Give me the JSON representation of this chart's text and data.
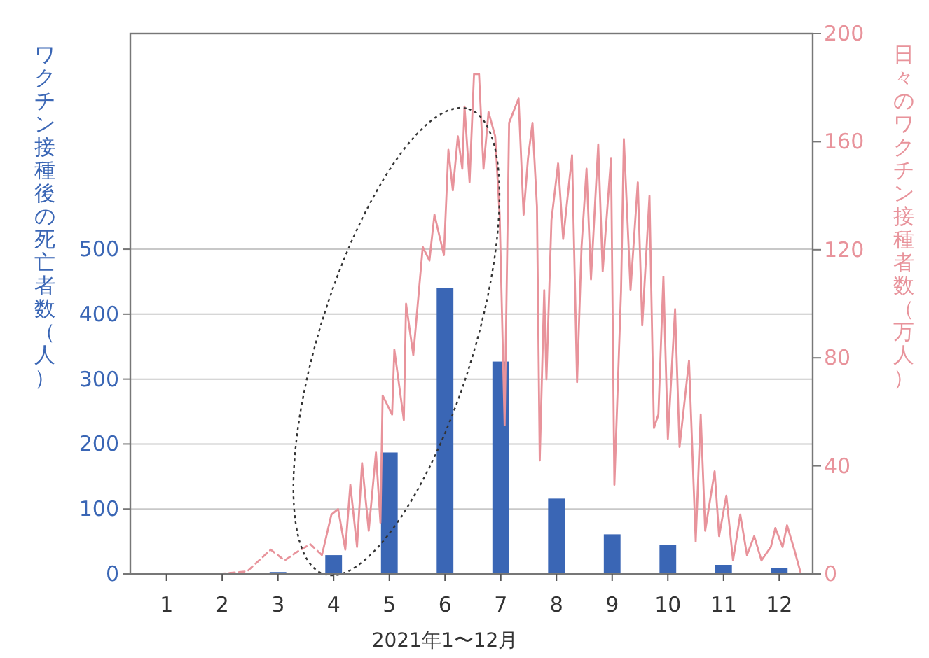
{
  "chart_data": {
    "type": "bar",
    "xlabel": "2021年1〜12月",
    "ylabel": "ワクチン接種後の死亡者数（人）",
    "y2label": "日々のワクチン接種者数（万人）",
    "xlim": [
      0.35,
      12.6
    ],
    "xticks": [
      1,
      2,
      3,
      4,
      5,
      6,
      7,
      8,
      9,
      10,
      11,
      12
    ],
    "ylim": [
      0,
      832
    ],
    "yticks": [
      0,
      100,
      200,
      300,
      400,
      500
    ],
    "y2lim": [
      0,
      200
    ],
    "y2ticks": [
      0,
      40,
      80,
      120,
      160,
      200
    ],
    "grid": "y",
    "series": [
      {
        "color": "#3a66b5",
        "x": [
          1,
          2,
          3,
          4,
          5,
          6,
          7,
          8,
          9,
          10,
          11,
          12
        ],
        "values": [
          0,
          0,
          3,
          29,
          187,
          440,
          327,
          116,
          61,
          45,
          14,
          9
        ]
      },
      {
        "type": "line",
        "axis": "y2",
        "color": "#e8939b",
        "line_style": "dashed",
        "x": [
          1.95,
          2.45,
          2.66,
          2.87,
          3.12,
          3.33,
          3.58,
          3.79
        ],
        "values": [
          0,
          1,
          5,
          9,
          5,
          8,
          11,
          7
        ]
      },
      {
        "type": "line",
        "axis": "y2",
        "color": "#e8939b",
        "line_style": "solid",
        "x": [
          3.79,
          3.96,
          4.08,
          4.21,
          4.3,
          4.42,
          4.51,
          4.63,
          4.76,
          4.84,
          4.88,
          5.05,
          5.09,
          5.26,
          5.3,
          5.43,
          5.6,
          5.72,
          5.81,
          5.98,
          6.06,
          6.14,
          6.23,
          6.31,
          6.35,
          6.44,
          6.52,
          6.61,
          6.69,
          6.78,
          6.9,
          6.98,
          7.07,
          7.15,
          7.32,
          7.41,
          7.49,
          7.57,
          7.65,
          7.7,
          7.78,
          7.82,
          7.91,
          8.03,
          8.12,
          8.28,
          8.37,
          8.45,
          8.54,
          8.62,
          8.75,
          8.83,
          8.98,
          9.04,
          9.16,
          9.21,
          9.33,
          9.46,
          9.54,
          9.67,
          9.75,
          9.83,
          9.92,
          10.0,
          10.13,
          10.21,
          10.38,
          10.5,
          10.59,
          10.67,
          10.84,
          10.92,
          11.05,
          11.17,
          11.3,
          11.42,
          11.55,
          11.68,
          11.85,
          11.93,
          12.06,
          12.14,
          12.27,
          12.39
        ],
        "values": [
          7,
          22,
          24,
          9,
          33,
          10,
          41,
          16,
          45,
          19,
          66,
          59,
          83,
          57,
          100,
          81,
          121,
          116,
          133,
          118,
          157,
          142,
          162,
          150,
          173,
          145,
          185,
          185,
          150,
          171,
          162,
          133,
          55,
          167,
          176,
          133,
          154,
          167,
          136,
          42,
          105,
          72,
          131,
          152,
          124,
          155,
          71,
          121,
          150,
          109,
          159,
          112,
          154,
          33,
          105,
          161,
          105,
          145,
          92,
          140,
          54,
          59,
          110,
          50,
          98,
          47,
          79,
          12,
          59,
          16,
          38,
          14,
          29,
          5,
          22,
          7,
          14,
          5,
          10,
          17,
          10,
          18,
          9,
          0
        ]
      }
    ]
  }
}
